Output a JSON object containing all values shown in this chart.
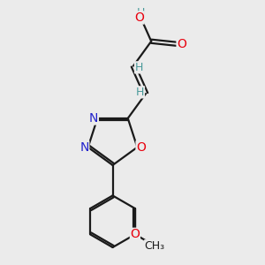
{
  "bg_color": "#ebebeb",
  "bond_color": "#1a1a1a",
  "atom_colors": {
    "O": "#e8000d",
    "N": "#2222cc",
    "H": "#4a9a9a",
    "C": "#1a1a1a"
  },
  "font_size": 9.5,
  "lw": 1.6
}
